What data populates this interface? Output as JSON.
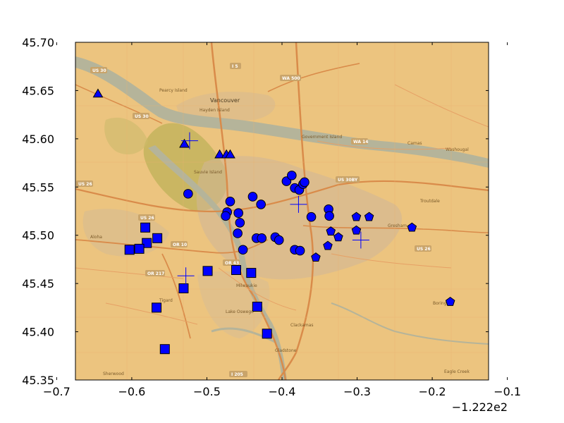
{
  "chart_data": {
    "type": "scatter",
    "title": "",
    "xlabel": "",
    "ylabel": "",
    "xlim": [
      -0.7,
      -0.1
    ],
    "ylim": [
      45.35,
      45.7
    ],
    "x_plot_range": [
      -0.675,
      -0.125
    ],
    "y_plot_range": [
      45.35,
      45.7
    ],
    "x_ticks": [
      -0.7,
      -0.6,
      -0.5,
      -0.4,
      -0.3,
      -0.2,
      -0.1
    ],
    "x_tick_labels": [
      "−0.7",
      "−0.6",
      "−0.5",
      "−0.4",
      "−0.3",
      "−0.2",
      "−0.1"
    ],
    "y_ticks": [
      45.35,
      45.4,
      45.45,
      45.5,
      45.55,
      45.6,
      45.65,
      45.7
    ],
    "y_tick_labels": [
      "45.35",
      "45.40",
      "45.45",
      "45.50",
      "45.55",
      "45.60",
      "45.65",
      "45.70"
    ],
    "x_offset_label": "−1.222e2",
    "grid": false,
    "legend": "none",
    "background": "street map of the Portland, Oregon metro area",
    "marker_color": "#0000ff",
    "series": [
      {
        "marker": "triangle",
        "points": [
          [
            -0.645,
            45.647
          ],
          [
            -0.53,
            45.595
          ],
          [
            -0.483,
            45.584
          ],
          [
            -0.474,
            45.584
          ],
          [
            -0.469,
            45.584
          ]
        ]
      },
      {
        "marker": "circle",
        "points": [
          [
            -0.525,
            45.543
          ],
          [
            -0.469,
            45.535
          ],
          [
            -0.473,
            45.524
          ],
          [
            -0.475,
            45.52
          ],
          [
            -0.458,
            45.523
          ],
          [
            -0.456,
            45.513
          ],
          [
            -0.459,
            45.502
          ],
          [
            -0.452,
            45.485
          ],
          [
            -0.439,
            45.54
          ],
          [
            -0.428,
            45.532
          ],
          [
            -0.434,
            45.497
          ],
          [
            -0.427,
            45.497
          ],
          [
            -0.409,
            45.498
          ],
          [
            -0.404,
            45.495
          ],
          [
            -0.394,
            45.556
          ],
          [
            -0.387,
            45.562
          ],
          [
            -0.383,
            45.549
          ],
          [
            -0.377,
            45.547
          ],
          [
            -0.372,
            45.553
          ],
          [
            -0.37,
            45.555
          ],
          [
            -0.383,
            45.485
          ],
          [
            -0.376,
            45.484
          ],
          [
            -0.361,
            45.519
          ],
          [
            -0.338,
            45.527
          ],
          [
            -0.337,
            45.52
          ]
        ]
      },
      {
        "marker": "square",
        "points": [
          [
            -0.582,
            45.508
          ],
          [
            -0.566,
            45.497
          ],
          [
            -0.58,
            45.492
          ],
          [
            -0.603,
            45.485
          ],
          [
            -0.59,
            45.486
          ],
          [
            -0.567,
            45.425
          ],
          [
            -0.556,
            45.382
          ],
          [
            -0.531,
            45.445
          ],
          [
            -0.499,
            45.463
          ],
          [
            -0.461,
            45.464
          ],
          [
            -0.441,
            45.461
          ],
          [
            -0.433,
            45.426
          ],
          [
            -0.42,
            45.398
          ]
        ]
      },
      {
        "marker": "pentagon",
        "points": [
          [
            -0.335,
            45.504
          ],
          [
            -0.325,
            45.498
          ],
          [
            -0.301,
            45.519
          ],
          [
            -0.301,
            45.505
          ],
          [
            -0.284,
            45.519
          ],
          [
            -0.339,
            45.489
          ],
          [
            -0.355,
            45.477
          ],
          [
            -0.227,
            45.508
          ],
          [
            -0.176,
            45.431
          ]
        ]
      },
      {
        "marker": "plus",
        "points": [
          [
            -0.523,
            45.598
          ],
          [
            -0.528,
            45.458
          ],
          [
            -0.378,
            45.532
          ],
          [
            -0.295,
            45.495
          ]
        ]
      }
    ]
  },
  "map_labels": {
    "vancouver": "Vancouver",
    "camas": "Camas",
    "washougal": "Washougal",
    "gresham": "Gresham",
    "boring": "Boring",
    "eagle_creek": "Eagle Creek",
    "clackamas": "Clackamas",
    "gladstone": "Gladstone",
    "milwaukie": "Milwaukie",
    "lake_oswego": "Lake Oswego",
    "sherwood": "Sherwood",
    "aloha": "Aloha",
    "tigard": "Tigard",
    "troutdale": "Troutdale",
    "hayden_island": "Hayden Island",
    "government_island": "Government Island",
    "sauvie_island": "Sauvie Island",
    "pearcy_island": "Pearcy Island",
    "us30": "US 30",
    "us26": "US 26",
    "i5": "I 5",
    "wa500": "WA 500",
    "wa14": "WA 14",
    "us30byp": "US 30BY",
    "or10": "OR 10",
    "or217": "OR 217",
    "or43": "OR 43",
    "i205": "I 205"
  }
}
